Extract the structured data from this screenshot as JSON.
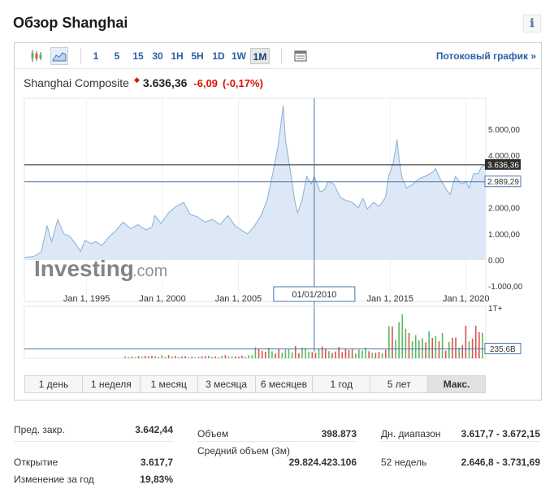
{
  "page": {
    "title": "Обзор Shanghai",
    "info_icon": "ℹ"
  },
  "toolbar": {
    "chart_type_icons": [
      "candlestick-icon",
      "area-chart-icon"
    ],
    "periods": [
      "1",
      "5",
      "15",
      "30",
      "1H",
      "5H",
      "1D",
      "1W",
      "1M"
    ],
    "active_period": "1M",
    "table_icon": "table-icon",
    "stream_link": "Потоковый график »"
  },
  "quote": {
    "name": "Shanghai Composite",
    "direction": "down",
    "last": "3.636,36",
    "change": "-6,09",
    "change_pct": "(-0,17%)"
  },
  "chart_data": {
    "type": "area",
    "x_ticks": [
      "Jan 1, 1995",
      "Jan 1, 2000",
      "Jan 1, 2005",
      "Jan 1, 2015",
      "Jan 1, 2020"
    ],
    "crosshair_x_label": "01/01/2010",
    "y_ticks": [
      "5.000,00",
      "4.000,00",
      "3.000,00",
      "2.000,00",
      "1.000,00",
      "0.00",
      "-1.000,00"
    ],
    "y_tick_values": [
      5000,
      4000,
      3000,
      2000,
      1000,
      0,
      -1000
    ],
    "ylim": [
      -1000,
      6000
    ],
    "xlim": [
      1990.9,
      2021.3
    ],
    "last_price_label": "3.636,36",
    "last_price_value": 3636.36,
    "crosshair_price_label": "2.989,29",
    "crosshair_price_value": 2989.29,
    "crosshair_x_value": 2010.0,
    "series": [
      {
        "values": [
          [
            1990.9,
            100
          ],
          [
            1991.5,
            130
          ],
          [
            1992.0,
            300
          ],
          [
            1992.4,
            1300
          ],
          [
            1992.7,
            700
          ],
          [
            1993.1,
            1550
          ],
          [
            1993.5,
            1000
          ],
          [
            1993.9,
            900
          ],
          [
            1994.3,
            600
          ],
          [
            1994.6,
            330
          ],
          [
            1994.9,
            750
          ],
          [
            1995.3,
            620
          ],
          [
            1995.6,
            700
          ],
          [
            1996.0,
            550
          ],
          [
            1996.5,
            900
          ],
          [
            1996.9,
            1100
          ],
          [
            1997.4,
            1450
          ],
          [
            1997.9,
            1200
          ],
          [
            1998.4,
            1350
          ],
          [
            1998.9,
            1150
          ],
          [
            1999.3,
            1250
          ],
          [
            1999.5,
            1700
          ],
          [
            1999.9,
            1400
          ],
          [
            2000.4,
            1800
          ],
          [
            2000.9,
            2050
          ],
          [
            2001.4,
            2200
          ],
          [
            2001.8,
            1750
          ],
          [
            2002.3,
            1650
          ],
          [
            2002.8,
            1450
          ],
          [
            2003.3,
            1550
          ],
          [
            2003.8,
            1350
          ],
          [
            2004.3,
            1700
          ],
          [
            2004.8,
            1300
          ],
          [
            2005.3,
            1100
          ],
          [
            2005.6,
            1000
          ],
          [
            2006.0,
            1250
          ],
          [
            2006.5,
            1700
          ],
          [
            2006.9,
            2300
          ],
          [
            2007.3,
            3400
          ],
          [
            2007.6,
            4300
          ],
          [
            2007.8,
            5200
          ],
          [
            2007.95,
            5900
          ],
          [
            2008.1,
            4600
          ],
          [
            2008.4,
            3500
          ],
          [
            2008.7,
            2300
          ],
          [
            2008.9,
            1800
          ],
          [
            2009.2,
            2300
          ],
          [
            2009.5,
            3200
          ],
          [
            2009.8,
            2900
          ],
          [
            2010.0,
            3200
          ],
          [
            2010.4,
            2600
          ],
          [
            2010.7,
            2700
          ],
          [
            2010.9,
            3000
          ],
          [
            2011.3,
            2900
          ],
          [
            2011.7,
            2400
          ],
          [
            2012.0,
            2300
          ],
          [
            2012.5,
            2200
          ],
          [
            2012.9,
            2000
          ],
          [
            2013.2,
            2350
          ],
          [
            2013.5,
            1950
          ],
          [
            2013.9,
            2200
          ],
          [
            2014.3,
            2050
          ],
          [
            2014.7,
            2400
          ],
          [
            2014.9,
            3200
          ],
          [
            2015.2,
            3700
          ],
          [
            2015.45,
            4600
          ],
          [
            2015.6,
            3800
          ],
          [
            2015.8,
            3100
          ],
          [
            2016.1,
            2750
          ],
          [
            2016.5,
            2900
          ],
          [
            2016.9,
            3100
          ],
          [
            2017.3,
            3200
          ],
          [
            2017.8,
            3350
          ],
          [
            2018.0,
            3500
          ],
          [
            2018.3,
            3100
          ],
          [
            2018.7,
            2700
          ],
          [
            2018.95,
            2500
          ],
          [
            2019.3,
            3200
          ],
          [
            2019.7,
            2900
          ],
          [
            2020.0,
            3000
          ],
          [
            2020.2,
            2750
          ],
          [
            2020.5,
            3300
          ],
          [
            2020.8,
            3300
          ],
          [
            2021.0,
            3550
          ],
          [
            2021.3,
            3636
          ]
        ]
      }
    ],
    "volume_label_top": "1T+",
    "volume_label_right": "235,6B",
    "volume_level": 0.12,
    "ylabel": "",
    "xlabel": ""
  },
  "watermark": {
    "brand": "Investing",
    "suffix": ".com"
  },
  "range_buttons": [
    "1 день",
    "1 неделя",
    "1 месяц",
    "3 месяца",
    "6 месяцев",
    "1 год",
    "5 лет",
    "Макс."
  ],
  "active_range": "Макс.",
  "stats": {
    "prev_close": {
      "label": "Пред. закр.",
      "value": "3.642,44"
    },
    "open": {
      "label": "Открытие",
      "value": "3.617,7"
    },
    "year_change": {
      "label": "Изменение за год",
      "value": "19,83%"
    },
    "volume": {
      "label": "Объем",
      "value": "398.873"
    },
    "avg_volume": {
      "label": "Средний объем (3м)",
      "value": "29.824.423.106"
    },
    "day_range": {
      "label": "Дн. диапазон",
      "value": "3.617,7 - 3.672,15"
    },
    "week52": {
      "label": "52 недель",
      "value": "2.646,8 - 3.731,69"
    }
  },
  "colors": {
    "accent": "#2a5ea8",
    "down": "#d91400",
    "area_fill": "#dce8f5",
    "area_line": "#8aaed5",
    "vol_up": "#5cb85c",
    "vol_down": "#d9534f"
  }
}
